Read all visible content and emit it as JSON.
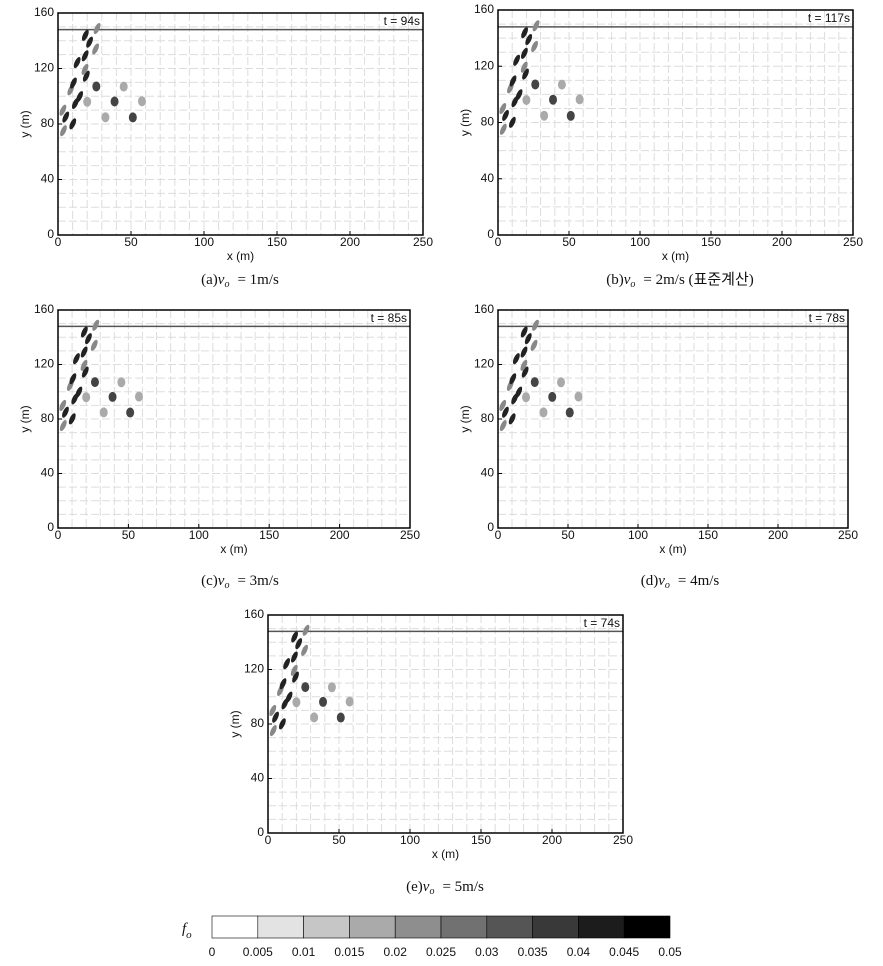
{
  "chart_data": [
    {
      "type": "field",
      "panel": "(a)",
      "var": "v",
      "sub": "o",
      "rest": "= 1m/s",
      "time": "t = 94s",
      "xlabel": "x (m)",
      "ylabel": "y (m)",
      "xlim": [
        0,
        250
      ],
      "ylim": [
        0,
        160
      ],
      "xticks": [
        0,
        50,
        100,
        150,
        200,
        250
      ],
      "yticks": [
        0,
        40,
        80,
        120,
        160
      ],
      "hline": 148
    },
    {
      "type": "field",
      "panel": "(b)",
      "var": "v",
      "sub": "o",
      "rest": "= 2m/s (표준계산)",
      "time": "t = 117s",
      "xlabel": "x (m)",
      "ylabel": "y (m)",
      "xlim": [
        0,
        250
      ],
      "ylim": [
        0,
        160
      ],
      "xticks": [
        0,
        50,
        100,
        150,
        200,
        250
      ],
      "yticks": [
        0,
        40,
        80,
        120,
        160
      ],
      "hline": 148
    },
    {
      "type": "field",
      "panel": "(c)",
      "var": "v",
      "sub": "o",
      "rest": "= 3m/s",
      "time": "t = 85s",
      "xlabel": "x (m)",
      "ylabel": "y (m)",
      "xlim": [
        0,
        250
      ],
      "ylim": [
        0,
        160
      ],
      "xticks": [
        0,
        50,
        100,
        150,
        200,
        250
      ],
      "yticks": [
        0,
        40,
        80,
        120,
        160
      ],
      "hline": 148
    },
    {
      "type": "field",
      "panel": "(d)",
      "var": "v",
      "sub": "o",
      "rest": "= 4m/s",
      "time": "t = 78s",
      "xlabel": "x (m)",
      "ylabel": "y (m)",
      "xlim": [
        0,
        250
      ],
      "ylim": [
        0,
        160
      ],
      "xticks": [
        0,
        50,
        100,
        150,
        200,
        250
      ],
      "yticks": [
        0,
        40,
        80,
        120,
        160
      ],
      "hline": 148
    },
    {
      "type": "field",
      "panel": "(e)",
      "var": "v",
      "sub": "o",
      "rest": "= 5m/s",
      "time": "t = 74s",
      "xlabel": "x (m)",
      "ylabel": "y (m)",
      "xlim": [
        0,
        250
      ],
      "ylim": [
        0,
        160
      ],
      "xticks": [
        0,
        50,
        100,
        150,
        200,
        250
      ],
      "yticks": [
        0,
        40,
        80,
        120,
        160
      ],
      "hline": 148
    },
    {
      "type": "colorbar",
      "symbol": "f",
      "sub": "o",
      "lim": [
        0,
        0.05
      ],
      "ticks": [
        0,
        0.005,
        0.01,
        0.015,
        0.02,
        0.025,
        0.03,
        0.035,
        0.04,
        0.045,
        0.05
      ]
    }
  ]
}
